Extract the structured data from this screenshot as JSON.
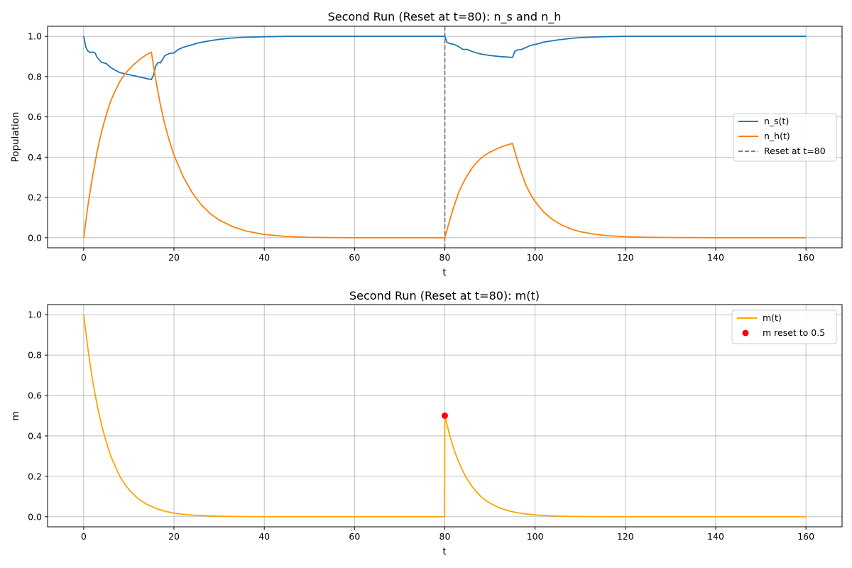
{
  "chart_data": [
    {
      "type": "line",
      "title": "Second Run (Reset at t=80): n_s and n_h",
      "xlabel": "t",
      "ylabel": "Population",
      "xlim": [
        -8,
        168
      ],
      "ylim": [
        -0.05,
        1.05
      ],
      "xticks": [
        0,
        20,
        40,
        60,
        80,
        100,
        120,
        140,
        160
      ],
      "xtick_labels": [
        "0",
        "20",
        "40",
        "60",
        "80",
        "100",
        "120",
        "140",
        "160"
      ],
      "yticks": [
        0.0,
        0.2,
        0.4,
        0.6,
        0.8,
        1.0
      ],
      "ytick_labels": [
        "0.0",
        "0.2",
        "0.4",
        "0.6",
        "0.8",
        "1.0"
      ],
      "grid": true,
      "legend_position": "right",
      "legend": [
        "n_s(t)",
        "n_h(t)",
        "Reset at t=80"
      ],
      "series": [
        {
          "name": "n_s(t)",
          "color": "#1f77b4",
          "x": [
            0,
            0.5,
            1,
            1.5,
            2,
            2.5,
            3,
            4,
            4.5,
            5,
            6,
            7,
            8,
            10,
            12,
            14,
            15,
            15.5,
            16,
            16.5,
            17,
            18,
            19,
            20,
            21,
            22,
            23,
            24,
            25,
            26,
            28,
            30,
            32,
            35,
            40,
            45,
            50,
            60,
            70,
            79.9,
            80,
            80.5,
            81,
            82,
            83,
            84,
            85,
            86,
            87,
            88,
            90,
            92,
            95,
            95.5,
            96,
            97,
            98,
            99,
            100,
            101,
            102,
            103,
            105,
            108,
            110,
            115,
            120,
            130,
            140,
            150,
            160
          ],
          "y": [
            1.0,
            0.945,
            0.925,
            0.92,
            0.922,
            0.918,
            0.895,
            0.87,
            0.868,
            0.865,
            0.845,
            0.832,
            0.82,
            0.81,
            0.8,
            0.79,
            0.785,
            0.81,
            0.855,
            0.87,
            0.868,
            0.905,
            0.915,
            0.918,
            0.935,
            0.945,
            0.952,
            0.958,
            0.965,
            0.97,
            0.978,
            0.985,
            0.99,
            0.995,
            0.998,
            1.0,
            1.0,
            1.0,
            1.0,
            1.0,
            1.0,
            0.97,
            0.965,
            0.96,
            0.95,
            0.935,
            0.935,
            0.925,
            0.918,
            0.912,
            0.905,
            0.9,
            0.895,
            0.925,
            0.932,
            0.935,
            0.945,
            0.955,
            0.96,
            0.965,
            0.972,
            0.975,
            0.982,
            0.99,
            0.994,
            0.998,
            1.0,
            1.0,
            1.0,
            1.0,
            1.0
          ]
        },
        {
          "name": "n_h(t)",
          "color": "#ff7f0e",
          "x": [
            0,
            1,
            2,
            3,
            4,
            5,
            6,
            7,
            8,
            9,
            10,
            11,
            12,
            13,
            14,
            15,
            16,
            17,
            18,
            19,
            20,
            22,
            24,
            26,
            28,
            30,
            33,
            36,
            40,
            45,
            50,
            55,
            60,
            70,
            79.9,
            80,
            81,
            82,
            83,
            84,
            85,
            86,
            87,
            88,
            89,
            90,
            91,
            92,
            93,
            94,
            95,
            96,
            97,
            98,
            99,
            100,
            102,
            104,
            106,
            108,
            110,
            113,
            116,
            120,
            125,
            130,
            140,
            150,
            160
          ],
          "y": [
            0.0,
            0.17,
            0.31,
            0.43,
            0.53,
            0.61,
            0.68,
            0.73,
            0.775,
            0.81,
            0.835,
            0.858,
            0.877,
            0.895,
            0.91,
            0.921,
            0.78,
            0.66,
            0.56,
            0.48,
            0.41,
            0.305,
            0.225,
            0.165,
            0.12,
            0.088,
            0.055,
            0.033,
            0.016,
            0.006,
            0.002,
            0.0008,
            0.0,
            0.0,
            0.0,
            0.0,
            0.08,
            0.155,
            0.22,
            0.27,
            0.31,
            0.345,
            0.372,
            0.395,
            0.412,
            0.425,
            0.436,
            0.446,
            0.455,
            0.462,
            0.468,
            0.39,
            0.32,
            0.26,
            0.215,
            0.18,
            0.125,
            0.088,
            0.062,
            0.043,
            0.03,
            0.018,
            0.01,
            0.005,
            0.002,
            0.001,
            0.0,
            0.0,
            0.0
          ]
        }
      ],
      "vline": {
        "name": "Reset at t=80",
        "x": 80,
        "color": "#7f7f7f",
        "style": "dashed"
      }
    },
    {
      "type": "line",
      "title": "Second Run (Reset at t=80): m(t)",
      "xlabel": "t",
      "ylabel": "m",
      "xlim": [
        -8,
        168
      ],
      "ylim": [
        -0.05,
        1.05
      ],
      "xticks": [
        0,
        20,
        40,
        60,
        80,
        100,
        120,
        140,
        160
      ],
      "xtick_labels": [
        "0",
        "20",
        "40",
        "60",
        "80",
        "100",
        "120",
        "140",
        "160"
      ],
      "yticks": [
        0.0,
        0.2,
        0.4,
        0.6,
        0.8,
        1.0
      ],
      "ytick_labels": [
        "0.0",
        "0.2",
        "0.4",
        "0.6",
        "0.8",
        "1.0"
      ],
      "grid": true,
      "legend_position": "top-right",
      "legend": [
        "m(t)",
        "m reset to 0.5"
      ],
      "series": [
        {
          "name": "m(t)",
          "color": "#ffa500",
          "x": [
            0,
            1,
            2,
            3,
            4,
            5,
            6,
            7,
            8,
            9,
            10,
            12,
            14,
            16,
            18,
            20,
            22,
            24,
            26,
            28,
            30,
            33,
            36,
            40,
            45,
            50,
            60,
            70,
            79.95,
            80,
            81,
            82,
            83,
            84,
            85,
            86,
            87,
            88,
            89,
            90,
            92,
            94,
            96,
            98,
            100,
            102,
            105,
            108,
            112,
            116,
            120,
            130,
            140,
            150,
            160
          ],
          "y": [
            1.0,
            0.82,
            0.67,
            0.55,
            0.45,
            0.37,
            0.3,
            0.25,
            0.2,
            0.165,
            0.135,
            0.09,
            0.061,
            0.041,
            0.027,
            0.018,
            0.012,
            0.008,
            0.006,
            0.004,
            0.0025,
            0.0012,
            0.0006,
            0.0,
            0.0,
            0.0,
            0.0,
            0.0,
            0.0,
            0.5,
            0.41,
            0.335,
            0.275,
            0.225,
            0.184,
            0.15,
            0.123,
            0.1,
            0.082,
            0.067,
            0.045,
            0.03,
            0.02,
            0.0135,
            0.009,
            0.006,
            0.003,
            0.0015,
            0.0005,
            0.0,
            0.0,
            0.0,
            0.0,
            0.0,
            0.0
          ]
        }
      ],
      "points": [
        {
          "name": "m reset to 0.5",
          "x": 80,
          "y": 0.5,
          "color": "#ff0000"
        }
      ]
    }
  ]
}
